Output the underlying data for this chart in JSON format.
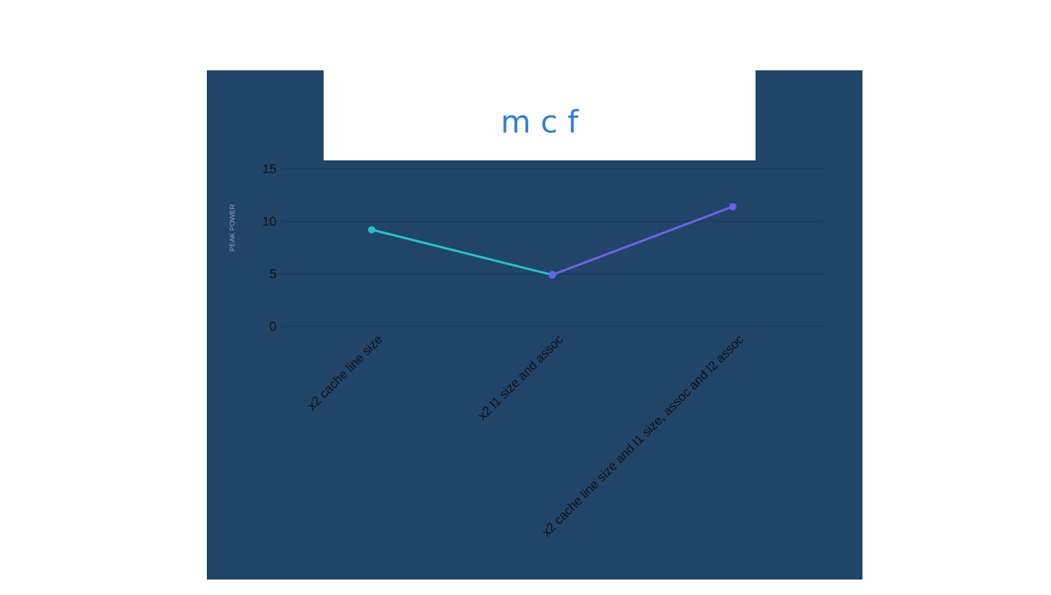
{
  "chart_data": {
    "type": "line",
    "title": "m c f",
    "ylabel": "PEAK POWER",
    "categories": [
      "x2 cache line size",
      "x2 l1 size and assoc",
      "x2 cache line size and l1 size, assoc and l2 assoc"
    ],
    "series": [
      {
        "color": "#22c3c9",
        "values": [
          9.2,
          4.9,
          null
        ]
      },
      {
        "color": "#6c62e6",
        "values": [
          null,
          4.9,
          11.4
        ]
      }
    ],
    "ylim": [
      0,
      15
    ],
    "yticks": [
      0,
      5,
      10,
      15
    ],
    "grid": "y",
    "marker": "circle",
    "line_style": "solid"
  }
}
